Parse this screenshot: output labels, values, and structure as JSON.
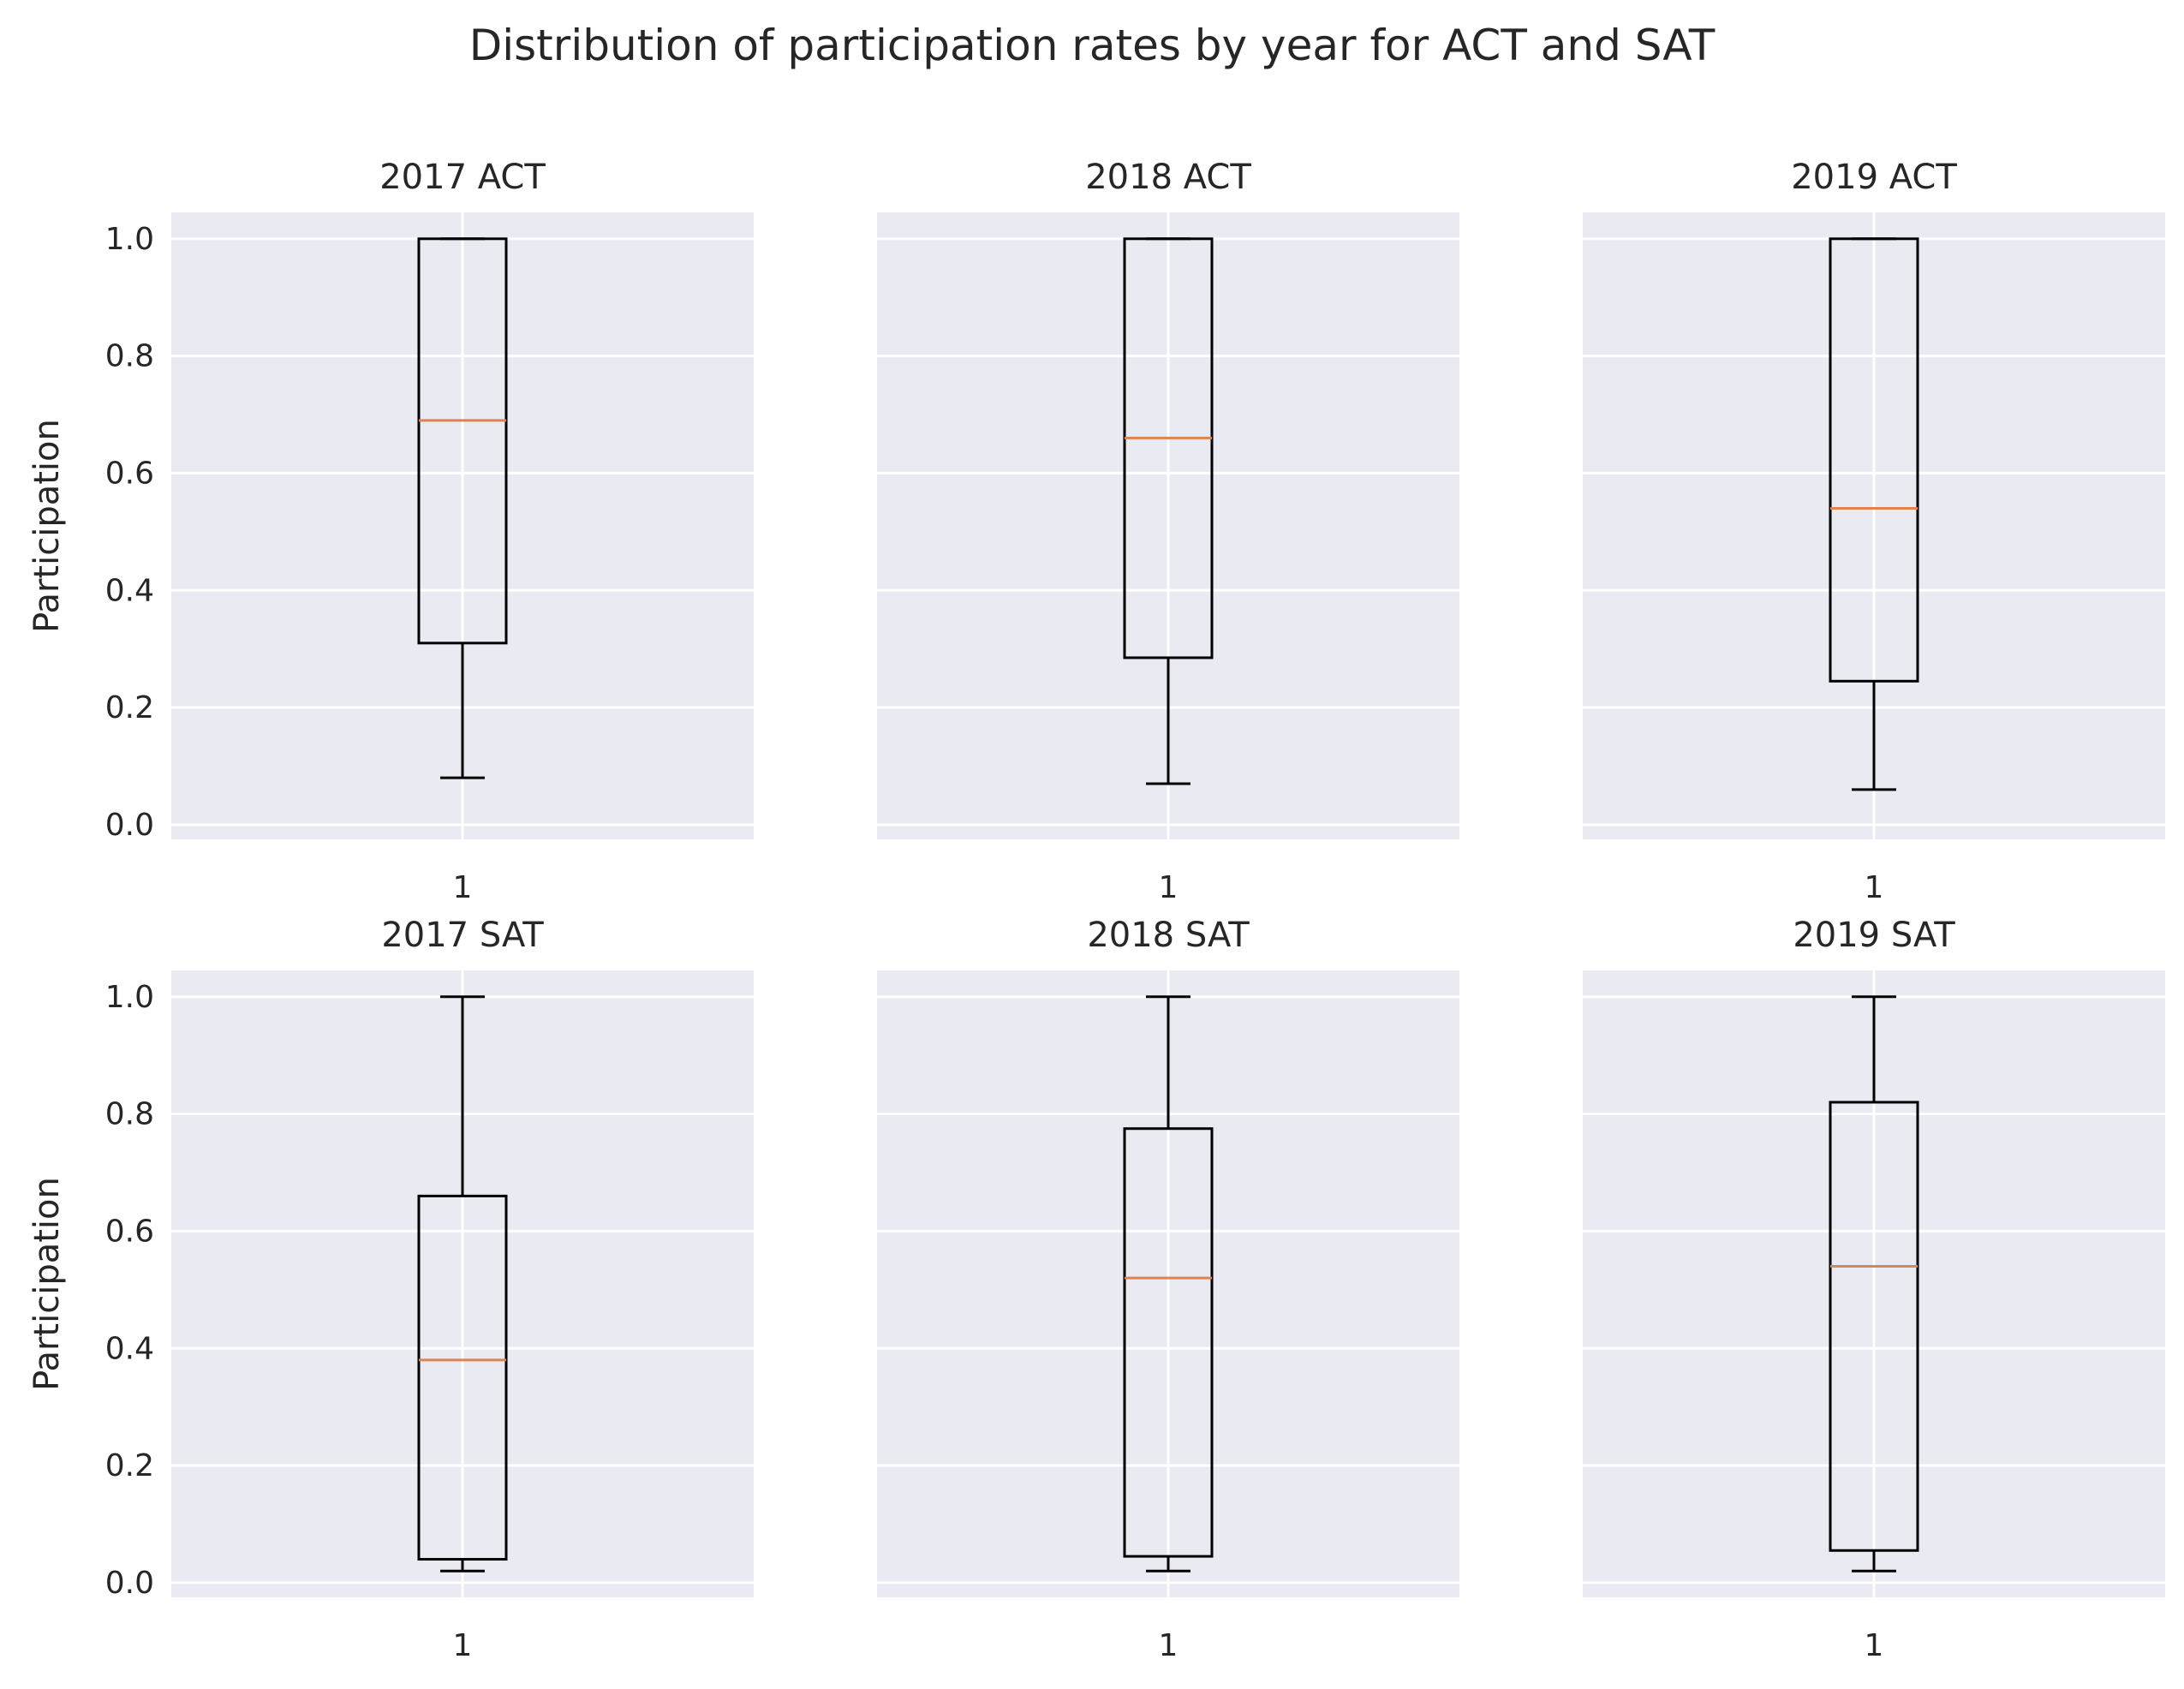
{
  "suptitle": "Distribution of participation rates by year for ACT and SAT",
  "colors": {
    "axes_bg": "#eaeaf2",
    "grid": "#ffffff",
    "box": "#000000",
    "median": "#dd8452",
    "text": "#262626"
  },
  "chart_data": [
    {
      "type": "box",
      "title": "2017 ACT",
      "ylabel": "Participation",
      "xticks": [
        "1"
      ],
      "yticks": [
        "0.0",
        "0.2",
        "0.4",
        "0.6",
        "0.8",
        "1.0"
      ],
      "ylim": [
        -0.025,
        1.045
      ],
      "grid": true,
      "box": {
        "min": 0.08,
        "q1": 0.31,
        "median": 0.69,
        "q3": 1.0,
        "max": 1.0
      }
    },
    {
      "type": "box",
      "title": "2018 ACT",
      "ylabel": "",
      "xticks": [
        "1"
      ],
      "yticks": [],
      "ylim": [
        -0.025,
        1.045
      ],
      "grid": true,
      "box": {
        "min": 0.07,
        "q1": 0.285,
        "median": 0.66,
        "q3": 1.0,
        "max": 1.0
      }
    },
    {
      "type": "box",
      "title": "2019 ACT",
      "ylabel": "",
      "xticks": [
        "1"
      ],
      "yticks": [],
      "ylim": [
        -0.025,
        1.045
      ],
      "grid": true,
      "box": {
        "min": 0.06,
        "q1": 0.245,
        "median": 0.54,
        "q3": 1.0,
        "max": 1.0
      }
    },
    {
      "type": "box",
      "title": "2017 SAT",
      "ylabel": "Participation",
      "xticks": [
        "1"
      ],
      "yticks": [
        "0.0",
        "0.2",
        "0.4",
        "0.6",
        "0.8",
        "1.0"
      ],
      "ylim": [
        -0.025,
        1.045
      ],
      "grid": true,
      "box": {
        "min": 0.02,
        "q1": 0.04,
        "median": 0.38,
        "q3": 0.66,
        "max": 1.0
      }
    },
    {
      "type": "box",
      "title": "2018 SAT",
      "ylabel": "",
      "xticks": [
        "1"
      ],
      "yticks": [],
      "ylim": [
        -0.025,
        1.045
      ],
      "grid": true,
      "box": {
        "min": 0.02,
        "q1": 0.045,
        "median": 0.52,
        "q3": 0.775,
        "max": 1.0
      }
    },
    {
      "type": "box",
      "title": "2019 SAT",
      "ylabel": "",
      "xticks": [
        "1"
      ],
      "yticks": [],
      "ylim": [
        -0.025,
        1.045
      ],
      "grid": true,
      "box": {
        "min": 0.02,
        "q1": 0.055,
        "median": 0.54,
        "q3": 0.82,
        "max": 1.0
      }
    }
  ]
}
